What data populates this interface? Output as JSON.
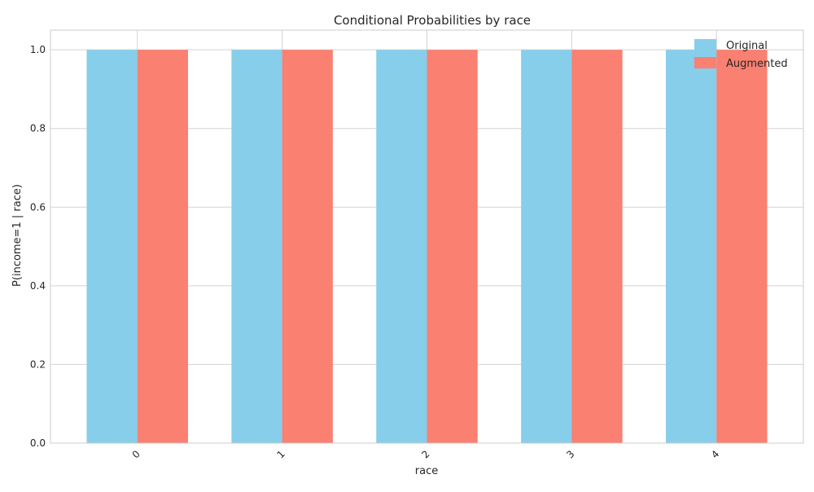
{
  "chart_data": {
    "type": "bar",
    "title": "Conditional Probabilities by race",
    "xlabel": "race",
    "ylabel": "P(income=1 | race)",
    "categories": [
      "0",
      "1",
      "2",
      "3",
      "4"
    ],
    "series": [
      {
        "name": "Original",
        "color": "#87CEEB",
        "values": [
          1.0,
          1.0,
          1.0,
          1.0,
          1.0
        ]
      },
      {
        "name": "Augmented",
        "color": "#FA8072",
        "values": [
          1.0,
          1.0,
          1.0,
          1.0,
          1.0
        ]
      }
    ],
    "ylim": [
      0,
      1.05
    ],
    "yticks": [
      "0.0",
      "0.2",
      "0.4",
      "0.6",
      "0.8",
      "1.0"
    ],
    "grid": true,
    "legend_position": "top-right",
    "xtick_rotation": "45 degrees"
  }
}
